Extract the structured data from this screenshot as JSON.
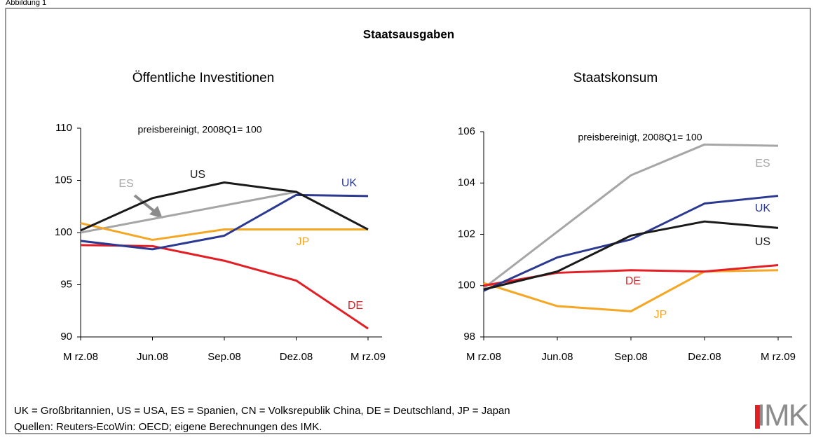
{
  "figure_label": "Abbildung 1",
  "title": "Staatsausgaben",
  "chart_data": [
    {
      "type": "line",
      "title": "Öffentliche Investitionen",
      "annotation": "preisbereinigt, 2008Q1= 100",
      "categories": [
        "M rz.08",
        "Jun.08",
        "Sep.08",
        "Dez.08",
        "M rz.09"
      ],
      "ylim": [
        90,
        110
      ],
      "yticks": [
        90,
        95,
        100,
        105,
        110
      ],
      "series": [
        {
          "name": "ES",
          "color": "#a6a6a6",
          "values": [
            100,
            101.3,
            102.6,
            103.9,
            null
          ]
        },
        {
          "name": "JP",
          "color": "#f5a623",
          "values": [
            100.9,
            99.3,
            100.3,
            100.3,
            100.3
          ]
        },
        {
          "name": "DE",
          "color": "#e31e24",
          "values": [
            98.8,
            98.7,
            97.3,
            95.4,
            90.8
          ]
        },
        {
          "name": "UK",
          "color": "#2b3990",
          "values": [
            99.2,
            98.4,
            99.7,
            103.6,
            103.5
          ]
        },
        {
          "name": "US",
          "color": "#1a1a1a",
          "values": [
            100.2,
            103.3,
            104.8,
            103.9,
            100.3
          ]
        }
      ]
    },
    {
      "type": "line",
      "title": "Staatskonsum",
      "annotation": "preisbereinigt, 2008Q1= 100",
      "categories": [
        "M rz.08",
        "Jun.08",
        "Sep.08",
        "Dez.08",
        "M rz.09"
      ],
      "ylim": [
        98,
        106
      ],
      "yticks": [
        98,
        100,
        102,
        104,
        106
      ],
      "series": [
        {
          "name": "ES",
          "color": "#a6a6a6",
          "values": [
            99.9,
            102.1,
            104.3,
            105.5,
            105.45
          ]
        },
        {
          "name": "JP",
          "color": "#f5a623",
          "values": [
            100.1,
            99.2,
            99.0,
            100.55,
            100.6
          ]
        },
        {
          "name": "DE",
          "color": "#e31e24",
          "values": [
            100.0,
            100.5,
            100.6,
            100.55,
            100.8
          ]
        },
        {
          "name": "UK",
          "color": "#2b3990",
          "values": [
            99.8,
            101.1,
            101.8,
            103.2,
            103.5
          ]
        },
        {
          "name": "US",
          "color": "#1a1a1a",
          "values": [
            99.85,
            100.55,
            101.95,
            102.5,
            102.25
          ]
        }
      ]
    }
  ],
  "footnotes": [
    "UK = Großbritannien, US = USA, ES = Spanien, CN = Volksrepublik China, DE = Deutschland, JP = Japan",
    "Quellen: Reuters-EcoWin: OECD; eigene Berechnungen des IMK."
  ],
  "logo": "IMK"
}
